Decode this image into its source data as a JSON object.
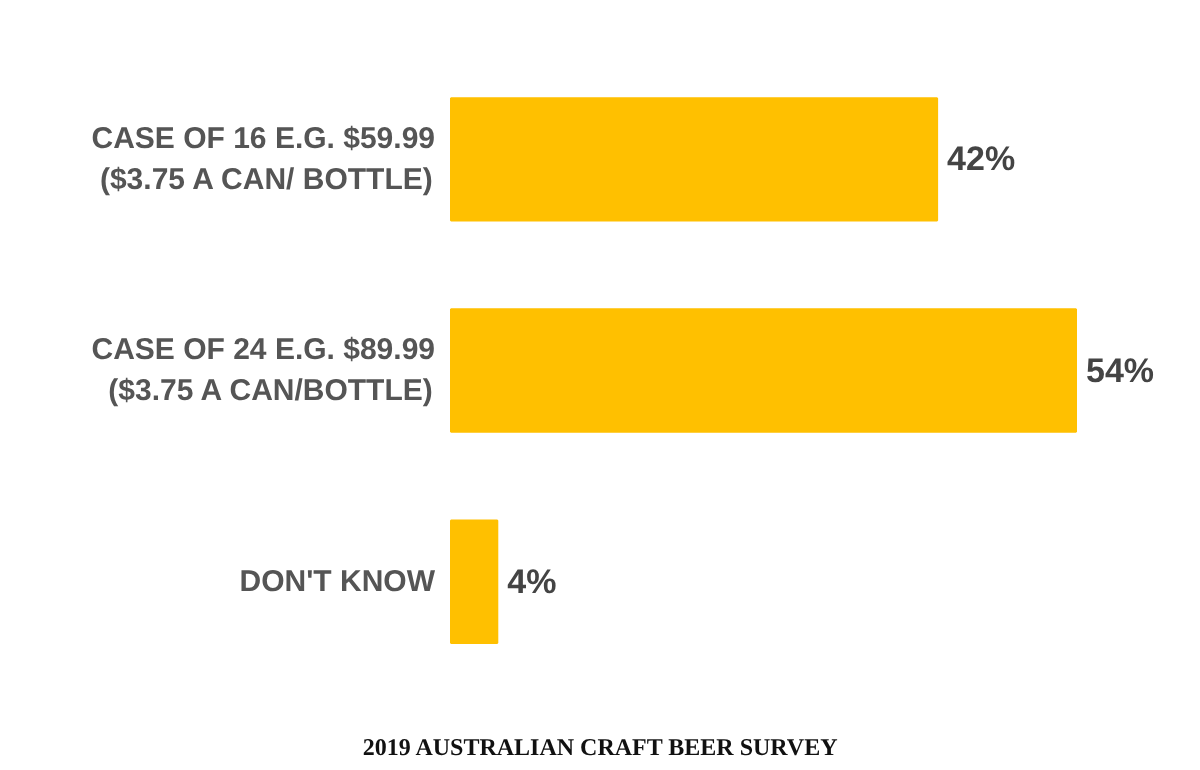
{
  "chart_data": {
    "type": "bar",
    "orientation": "horizontal",
    "title": "2019 AUSTRALIAN CRAFT BEER SURVEY",
    "categories": [
      "CASE OF 16 E.G. $59.99 ($3.75 A CAN/ BOTTLE)",
      "CASE OF 24 E.G. $89.99 ($3.75 A CAN/BOTTLE)",
      "DON'T KNOW"
    ],
    "values": [
      42,
      54,
      4
    ],
    "value_labels": [
      "42%",
      "54%",
      "4%"
    ],
    "color": "#ffc000",
    "grid": false
  }
}
